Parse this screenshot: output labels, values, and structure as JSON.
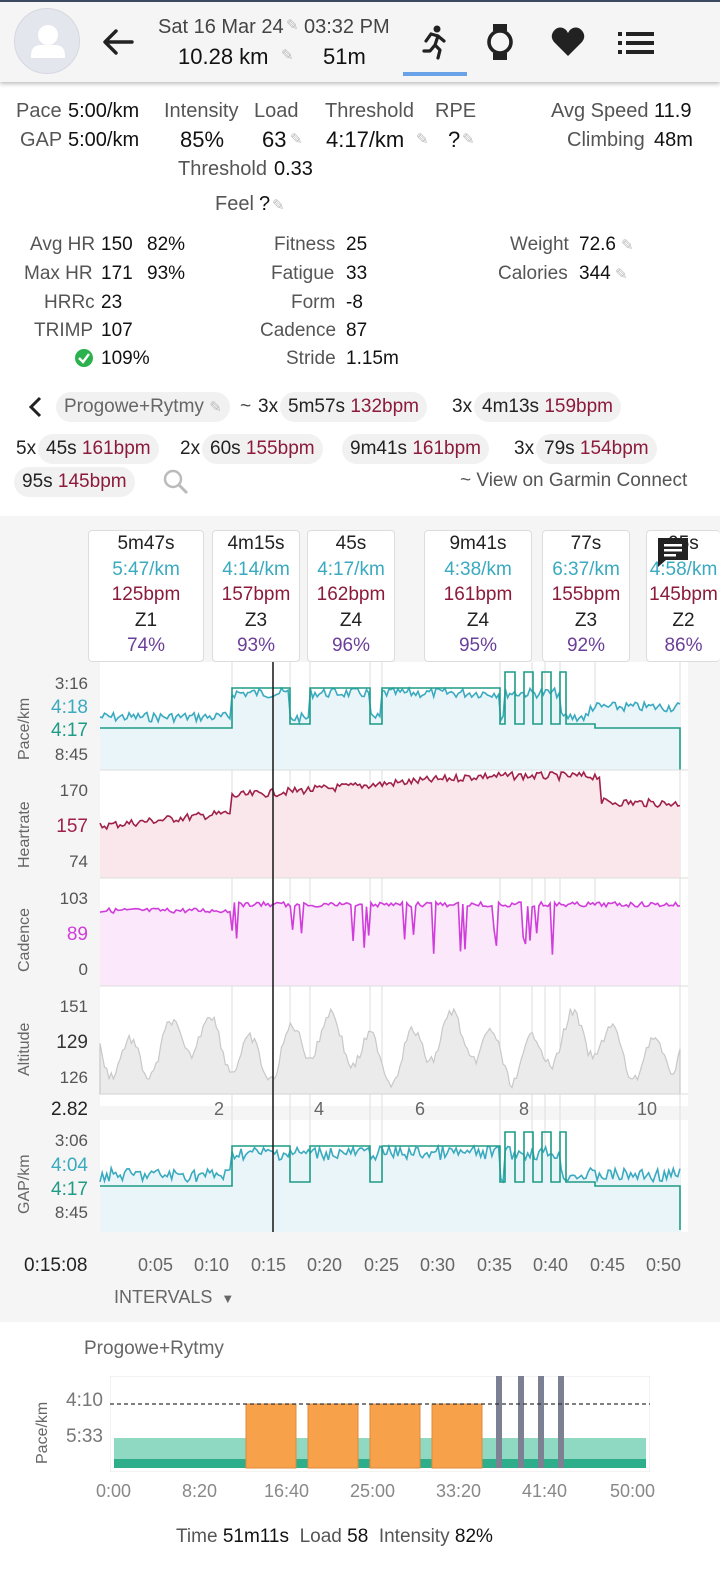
{
  "header": {
    "date": "Sat 16 Mar 24",
    "time": "03:32 PM",
    "distance": "10.28 km",
    "duration": "51m"
  },
  "summary": {
    "pace_label": "Pace",
    "pace": "5:00/km",
    "gap_label": "GAP",
    "gap": "5:00/km",
    "intensity_label": "Intensity",
    "intensity": "85%",
    "load_label": "Load",
    "load": "63",
    "threshold_label": "Threshold",
    "threshold": "4:17/km",
    "rpe_label": "RPE",
    "rpe": "?",
    "avg_speed_label": "Avg Speed",
    "avg_speed": "11.9",
    "climbing_label": "Climbing",
    "climbing": "48m",
    "threshold2_label": "Threshold",
    "threshold2": "0.33",
    "feel_label": "Feel",
    "feel": "?"
  },
  "stats": {
    "avg_hr_label": "Avg HR",
    "avg_hr": "150",
    "avg_hr_pct": "82%",
    "max_hr_label": "Max HR",
    "max_hr": "171",
    "max_hr_pct": "93%",
    "hrrc_label": "HRRc",
    "hrrc": "23",
    "trimp_label": "TRIMP",
    "trimp": "107",
    "check_pct": "109%",
    "fitness_label": "Fitness",
    "fitness": "25",
    "fatigue_label": "Fatigue",
    "fatigue": "33",
    "form_label": "Form",
    "form": "-8",
    "cadence_label": "Cadence",
    "cadence": "87",
    "stride_label": "Stride",
    "stride": "1.15m",
    "weight_label": "Weight",
    "weight": "72.6",
    "calories_label": "Calories",
    "calories": "344"
  },
  "workout": {
    "name": "Progowe+Rytmy",
    "chips": [
      {
        "rep": "3x",
        "dur": "5m57s",
        "bpm": "132bpm"
      },
      {
        "rep": "3x",
        "dur": "4m13s",
        "bpm": "159bpm"
      },
      {
        "rep": "5x",
        "dur": "45s",
        "bpm": "161bpm"
      },
      {
        "rep": "2x",
        "dur": "60s",
        "bpm": "155bpm"
      },
      {
        "rep": "",
        "dur": "9m41s",
        "bpm": "161bpm"
      },
      {
        "rep": "3x",
        "dur": "79s",
        "bpm": "154bpm"
      },
      {
        "rep": "",
        "dur": "95s",
        "bpm": "145bpm"
      }
    ],
    "tilde": "~",
    "garmin_link": "~ View on Garmin Connect"
  },
  "intervals": [
    {
      "dur": "5m47s",
      "pace": "5:47/km",
      "hr": "125bpm",
      "zone": "Z1",
      "pct": "74%"
    },
    {
      "dur": "4m15s",
      "pace": "4:14/km",
      "hr": "157bpm",
      "zone": "Z3",
      "pct": "93%"
    },
    {
      "dur": "45s",
      "pace": "4:17/km",
      "hr": "162bpm",
      "zone": "Z4",
      "pct": "96%"
    },
    {
      "dur": "9m41s",
      "pace": "4:38/km",
      "hr": "161bpm",
      "zone": "Z4",
      "pct": "95%"
    },
    {
      "dur": "77s",
      "pace": "6:37/km",
      "hr": "155bpm",
      "zone": "Z3",
      "pct": "92%"
    },
    {
      "dur": "95s",
      "pace": "4:58/km",
      "hr": "145bpm",
      "zone": "Z2",
      "pct": "86%"
    }
  ],
  "charts": {
    "pace": {
      "label": "Pace/km",
      "top": "3:16",
      "cur": "4:18",
      "cur2": "4:17",
      "bottom": "8:45",
      "color": "#3aaabf",
      "color2": "#1e9c86"
    },
    "hr": {
      "label": "Heartrate",
      "top": "170",
      "cur": "157",
      "bottom": "74",
      "color": "#a0204a"
    },
    "cad": {
      "label": "Cadence",
      "top": "103",
      "cur": "89",
      "bottom": "0",
      "color": "#d13ddb"
    },
    "alt": {
      "label": "Altitude",
      "top": "151",
      "cur": "129",
      "bottom": "126",
      "color": "#bbbbbb"
    },
    "gap": {
      "label": "GAP/km",
      "top": "3:06",
      "cur": "4:04",
      "cur2": "4:17",
      "bottom": "8:45",
      "color": "#3aaabf",
      "color2": "#1e9c86"
    },
    "distance_readout": "2.82",
    "distance_ticks": [
      "2",
      "4",
      "6",
      "8",
      "10"
    ],
    "time_readout": "0:15:08",
    "time_ticks": [
      "0:05",
      "0:10",
      "0:15",
      "0:20",
      "0:25",
      "0:30",
      "0:35",
      "0:40",
      "0:45",
      "0:50"
    ]
  },
  "intervals_button": "INTERVALS",
  "plan": {
    "title": "Progowe+Rytmy",
    "ylabel": "Pace/km",
    "y_ticks": [
      "4:10",
      "5:33"
    ],
    "x_ticks": [
      "0:00",
      "8:20",
      "16:40",
      "25:00",
      "33:20",
      "41:40",
      "50:00"
    ],
    "time_label": "Time",
    "time": "51m11s",
    "load_label": "Load",
    "load": "58",
    "intensity_label": "Intensity",
    "intensity": "82%"
  },
  "colors": {
    "accent": "#3aaabf",
    "hr": "#8b1a3b",
    "zonepct": "#6a3f99",
    "orange": "#f7a14a",
    "teal": "#63c9ad"
  }
}
